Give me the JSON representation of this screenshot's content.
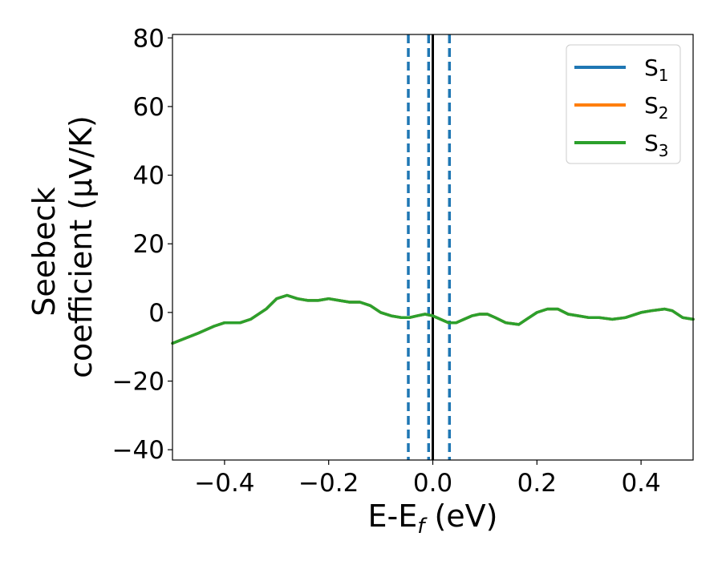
{
  "chart_data": {
    "type": "line",
    "xlabel": "E-E",
    "xlabel_sub": "f",
    "xlabel_unit": " (eV)",
    "ylabel_line1": "Seebeck",
    "ylabel_line2": "coefficient  (μV/K)",
    "xlim": [
      -0.5,
      0.5
    ],
    "ylim": [
      -43,
      81
    ],
    "x_ticks": [
      -0.4,
      -0.2,
      0.0,
      0.2,
      0.4
    ],
    "x_tick_labels": [
      "−0.4",
      "−0.2",
      "0.0",
      "0.2",
      "0.4"
    ],
    "y_ticks": [
      -40,
      -20,
      0,
      20,
      40,
      60,
      80
    ],
    "y_tick_labels": [
      "−40",
      "−20",
      "0",
      "20",
      "40",
      "60",
      "80"
    ],
    "grid": false,
    "legend_position": "top-right",
    "vlines": [
      {
        "x": -0.047,
        "style": "dashed",
        "color": "#1f77b4"
      },
      {
        "x": -0.008,
        "style": "dashed",
        "color": "#1f77b4"
      },
      {
        "x": 0.032,
        "style": "dashed",
        "color": "#1f77b4"
      },
      {
        "x": 0.0,
        "style": "solid",
        "color": "#000000"
      }
    ],
    "series": [
      {
        "name": "S",
        "sub": "1",
        "color": "#1f77b4",
        "x": [
          -0.5,
          -0.45,
          -0.42,
          -0.4,
          -0.37,
          -0.35,
          -0.32,
          -0.3,
          -0.28,
          -0.26,
          -0.24,
          -0.22,
          -0.2,
          -0.18,
          -0.16,
          -0.14,
          -0.12,
          -0.1,
          -0.08,
          -0.06,
          -0.045,
          -0.03,
          -0.015,
          0.0,
          0.015,
          0.03,
          0.045,
          0.06,
          0.075,
          0.09,
          0.105,
          0.12,
          0.14,
          0.165,
          0.18,
          0.2,
          0.22,
          0.24,
          0.26,
          0.28,
          0.3,
          0.32,
          0.345,
          0.37,
          0.4,
          0.42,
          0.445,
          0.46,
          0.48,
          0.5
        ],
        "y": [
          -9,
          -6,
          -4,
          -3,
          -3,
          -2,
          1,
          4,
          5,
          4,
          3.5,
          3.5,
          4,
          3.5,
          3,
          3,
          2,
          0,
          -1,
          -1.5,
          -1.5,
          -1,
          -0.5,
          -1,
          -2,
          -3,
          -3,
          -2,
          -1,
          -0.5,
          -0.5,
          -1.5,
          -3,
          -3.5,
          -2,
          0,
          1,
          1,
          -0.5,
          -1,
          -1.5,
          -1.5,
          -2,
          -1.5,
          0,
          0.5,
          1,
          0.5,
          -1.5,
          -2
        ]
      },
      {
        "name": "S",
        "sub": "2",
        "color": "#ff7f0e",
        "x": [
          -0.5,
          -0.45,
          -0.42,
          -0.4,
          -0.37,
          -0.35,
          -0.32,
          -0.3,
          -0.28,
          -0.26,
          -0.24,
          -0.22,
          -0.2,
          -0.18,
          -0.16,
          -0.14,
          -0.12,
          -0.1,
          -0.08,
          -0.06,
          -0.045,
          -0.03,
          -0.015,
          0.0,
          0.015,
          0.03,
          0.045,
          0.06,
          0.075,
          0.09,
          0.105,
          0.12,
          0.14,
          0.165,
          0.18,
          0.2,
          0.22,
          0.24,
          0.26,
          0.28,
          0.3,
          0.32,
          0.345,
          0.37,
          0.4,
          0.42,
          0.445,
          0.46,
          0.48,
          0.5
        ],
        "y": [
          -9,
          -6,
          -4,
          -3,
          -3,
          -2,
          1,
          4,
          5,
          4,
          3.5,
          3.5,
          4,
          3.5,
          3,
          3,
          2,
          0,
          -1,
          -1.5,
          -1.5,
          -1,
          -0.5,
          -1,
          -2,
          -3,
          -3,
          -2,
          -1,
          -0.5,
          -0.5,
          -1.5,
          -3,
          -3.5,
          -2,
          0,
          1,
          1,
          -0.5,
          -1,
          -1.5,
          -1.5,
          -2,
          -1.5,
          0,
          0.5,
          1,
          0.5,
          -1.5,
          -2
        ]
      },
      {
        "name": "S",
        "sub": "3",
        "color": "#2ca02c",
        "x": [
          -0.5,
          -0.45,
          -0.42,
          -0.4,
          -0.37,
          -0.35,
          -0.32,
          -0.3,
          -0.28,
          -0.26,
          -0.24,
          -0.22,
          -0.2,
          -0.18,
          -0.16,
          -0.14,
          -0.12,
          -0.1,
          -0.08,
          -0.06,
          -0.045,
          -0.03,
          -0.015,
          0.0,
          0.015,
          0.03,
          0.045,
          0.06,
          0.075,
          0.09,
          0.105,
          0.12,
          0.14,
          0.165,
          0.18,
          0.2,
          0.22,
          0.24,
          0.26,
          0.28,
          0.3,
          0.32,
          0.345,
          0.37,
          0.4,
          0.42,
          0.445,
          0.46,
          0.48,
          0.5
        ],
        "y": [
          -9,
          -6,
          -4,
          -3,
          -3,
          -2,
          1,
          4,
          5,
          4,
          3.5,
          3.5,
          4,
          3.5,
          3,
          3,
          2,
          0,
          -1,
          -1.5,
          -1.5,
          -1,
          -0.5,
          -1,
          -2,
          -3,
          -3,
          -2,
          -1,
          -0.5,
          -0.5,
          -1.5,
          -3,
          -3.5,
          -2,
          0,
          1,
          1,
          -0.5,
          -1,
          -1.5,
          -1.5,
          -2,
          -1.5,
          0,
          0.5,
          1,
          0.5,
          -1.5,
          -2
        ]
      }
    ]
  }
}
